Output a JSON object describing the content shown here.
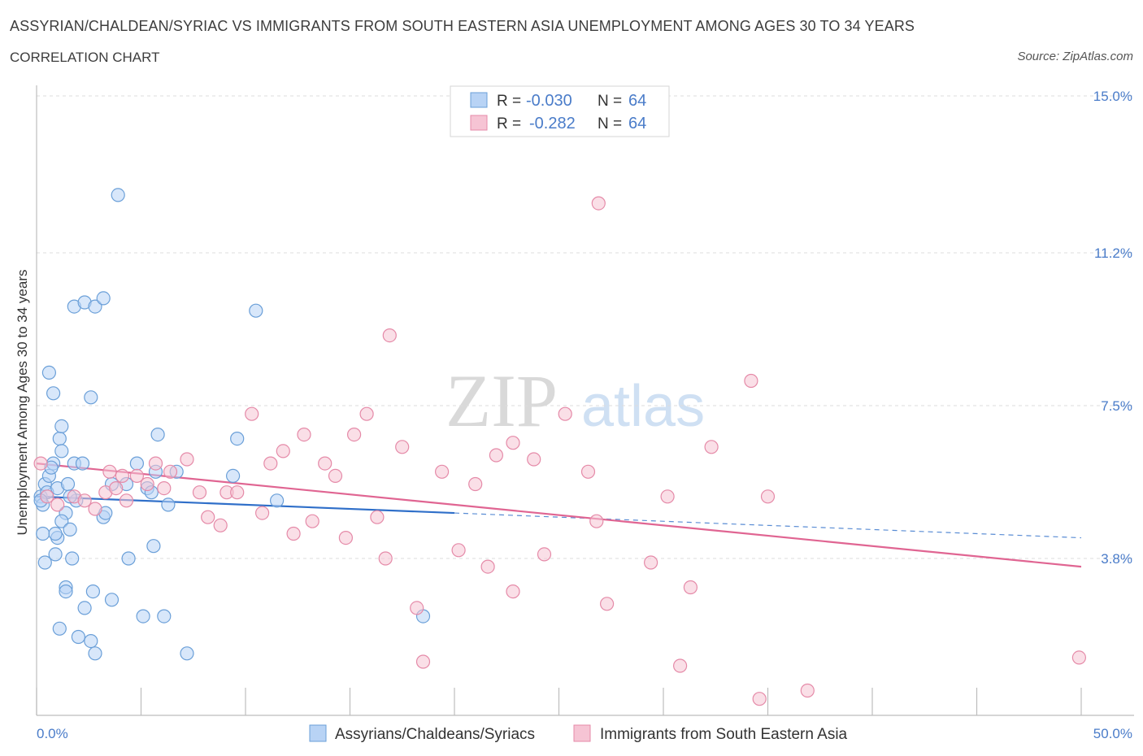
{
  "header": {
    "title": "ASSYRIAN/CHALDEAN/SYRIAC VS IMMIGRANTS FROM SOUTH EASTERN ASIA UNEMPLOYMENT AMONG AGES 30 TO 34 YEARS",
    "subtitle": "CORRELATION CHART",
    "source": "Source: ZipAtlas.com"
  },
  "watermark": {
    "zip": "ZIP",
    "atlas": "atlas"
  },
  "colors": {
    "blue_fill": "#b8d3f5",
    "blue_stroke": "#6a9fd8",
    "blue_line": "#2f6fc9",
    "pink_fill": "#f6c4d4",
    "pink_stroke": "#e58aa8",
    "pink_line": "#e06592",
    "grid": "#dddddd",
    "tick_text": "#4a7cc9"
  },
  "legend": {
    "rows": [
      {
        "r_label": "R =",
        "r_value": "-0.030",
        "n_label": "N =",
        "n_value": "64"
      },
      {
        "r_label": "R =",
        "r_value": "-0.282",
        "n_label": "N =",
        "n_value": "64"
      }
    ]
  },
  "chart_data": {
    "type": "scatter",
    "title": "ASSYRIAN/CHALDEAN/SYRIAC VS IMMIGRANTS FROM SOUTH EASTERN ASIA UNEMPLOYMENT AMONG AGES 30 TO 34 YEARS",
    "xlabel": "",
    "ylabel": "Unemployment Among Ages 30 to 34 years",
    "xlim": [
      0,
      50
    ],
    "ylim": [
      0,
      15
    ],
    "x_tick_labels": [
      "0.0%",
      "50.0%"
    ],
    "y_ticks": [
      3.8,
      7.5,
      11.2,
      15.0
    ],
    "y_tick_labels": [
      "3.8%",
      "7.5%",
      "11.2%",
      "15.0%"
    ],
    "series": [
      {
        "name": "Assyrians/Chaldeans/Syriacs",
        "color": "#6a9fd8",
        "R": -0.03,
        "N": 64,
        "trend": {
          "x": [
            0,
            20
          ],
          "y": [
            5.3,
            4.9
          ]
        },
        "trend_extension": {
          "x": [
            20,
            50
          ],
          "y": [
            4.9,
            4.3
          ]
        },
        "points": [
          [
            0.2,
            5.3
          ],
          [
            0.3,
            5.1
          ],
          [
            0.4,
            5.6
          ],
          [
            0.5,
            5.4
          ],
          [
            0.6,
            5.8
          ],
          [
            0.8,
            6.1
          ],
          [
            0.3,
            4.4
          ],
          [
            0.4,
            3.7
          ],
          [
            0.6,
            8.3
          ],
          [
            0.8,
            7.8
          ],
          [
            1.0,
            5.5
          ],
          [
            1.1,
            6.7
          ],
          [
            1.2,
            7.0
          ],
          [
            1.2,
            6.4
          ],
          [
            1.5,
            5.6
          ],
          [
            1.4,
            4.9
          ],
          [
            1.2,
            4.7
          ],
          [
            1.0,
            4.3
          ],
          [
            0.9,
            3.9
          ],
          [
            0.9,
            4.4
          ],
          [
            1.6,
            4.5
          ],
          [
            1.8,
            6.1
          ],
          [
            1.9,
            5.2
          ],
          [
            1.7,
            3.8
          ],
          [
            1.4,
            3.1
          ],
          [
            1.4,
            3.0
          ],
          [
            1.1,
            2.1
          ],
          [
            2.0,
            1.9
          ],
          [
            2.6,
            1.8
          ],
          [
            2.8,
            1.5
          ],
          [
            2.3,
            2.6
          ],
          [
            2.7,
            3.0
          ],
          [
            2.2,
            6.1
          ],
          [
            2.6,
            7.7
          ],
          [
            3.2,
            4.8
          ],
          [
            3.3,
            4.9
          ],
          [
            3.6,
            5.6
          ],
          [
            3.6,
            2.8
          ],
          [
            1.8,
            9.9
          ],
          [
            2.3,
            10.0
          ],
          [
            2.8,
            9.9
          ],
          [
            3.2,
            10.1
          ],
          [
            3.9,
            12.6
          ],
          [
            4.3,
            5.6
          ],
          [
            4.4,
            3.8
          ],
          [
            4.8,
            6.1
          ],
          [
            5.1,
            2.4
          ],
          [
            5.3,
            5.5
          ],
          [
            5.5,
            5.4
          ],
          [
            5.6,
            4.1
          ],
          [
            5.7,
            5.9
          ],
          [
            5.8,
            6.8
          ],
          [
            6.1,
            2.4
          ],
          [
            6.3,
            5.1
          ],
          [
            7.2,
            1.5
          ],
          [
            6.7,
            5.9
          ],
          [
            9.4,
            5.8
          ],
          [
            9.6,
            6.7
          ],
          [
            10.5,
            9.8
          ],
          [
            11.5,
            5.2
          ],
          [
            18.5,
            2.4
          ],
          [
            0.2,
            5.2
          ],
          [
            0.7,
            6.0
          ],
          [
            1.6,
            5.3
          ]
        ]
      },
      {
        "name": "Immigrants from South Eastern Asia",
        "color": "#e58aa8",
        "R": -0.282,
        "N": 64,
        "trend": {
          "x": [
            0,
            50
          ],
          "y": [
            6.1,
            3.6
          ]
        },
        "points": [
          [
            0.2,
            6.1
          ],
          [
            0.5,
            5.3
          ],
          [
            1.0,
            5.1
          ],
          [
            1.8,
            5.3
          ],
          [
            2.3,
            5.2
          ],
          [
            2.8,
            5.0
          ],
          [
            3.3,
            5.4
          ],
          [
            3.5,
            5.9
          ],
          [
            3.8,
            5.5
          ],
          [
            4.1,
            5.8
          ],
          [
            4.3,
            5.2
          ],
          [
            4.8,
            5.8
          ],
          [
            5.3,
            5.6
          ],
          [
            5.7,
            6.1
          ],
          [
            6.1,
            5.5
          ],
          [
            6.4,
            5.9
          ],
          [
            7.2,
            6.2
          ],
          [
            7.8,
            5.4
          ],
          [
            8.2,
            4.8
          ],
          [
            8.8,
            4.6
          ],
          [
            9.1,
            5.4
          ],
          [
            9.6,
            5.4
          ],
          [
            10.3,
            7.3
          ],
          [
            10.8,
            4.9
          ],
          [
            11.2,
            6.1
          ],
          [
            11.8,
            6.4
          ],
          [
            12.3,
            4.4
          ],
          [
            12.8,
            6.8
          ],
          [
            13.2,
            4.7
          ],
          [
            13.8,
            6.1
          ],
          [
            14.3,
            5.8
          ],
          [
            14.8,
            4.3
          ],
          [
            15.2,
            6.8
          ],
          [
            15.8,
            7.3
          ],
          [
            16.3,
            4.8
          ],
          [
            16.9,
            9.2
          ],
          [
            16.7,
            3.8
          ],
          [
            17.5,
            6.5
          ],
          [
            18.2,
            2.6
          ],
          [
            18.5,
            1.3
          ],
          [
            19.4,
            5.9
          ],
          [
            20.2,
            4.0
          ],
          [
            21.0,
            5.6
          ],
          [
            22.0,
            6.3
          ],
          [
            21.6,
            3.6
          ],
          [
            22.8,
            6.6
          ],
          [
            22.8,
            3.0
          ],
          [
            23.8,
            6.2
          ],
          [
            24.3,
            3.9
          ],
          [
            25.3,
            7.3
          ],
          [
            26.4,
            5.9
          ],
          [
            26.8,
            4.7
          ],
          [
            26.9,
            12.4
          ],
          [
            27.3,
            2.7
          ],
          [
            29.4,
            3.7
          ],
          [
            30.2,
            5.3
          ],
          [
            30.8,
            1.2
          ],
          [
            31.3,
            3.1
          ],
          [
            32.3,
            6.5
          ],
          [
            34.2,
            8.1
          ],
          [
            34.6,
            0.4
          ],
          [
            35.0,
            5.3
          ],
          [
            36.9,
            0.6
          ],
          [
            49.9,
            1.4
          ]
        ]
      }
    ]
  },
  "bottom_legend": [
    {
      "label": "Assyrians/Chaldeans/Syriacs"
    },
    {
      "label": "Immigrants from South Eastern Asia"
    }
  ]
}
